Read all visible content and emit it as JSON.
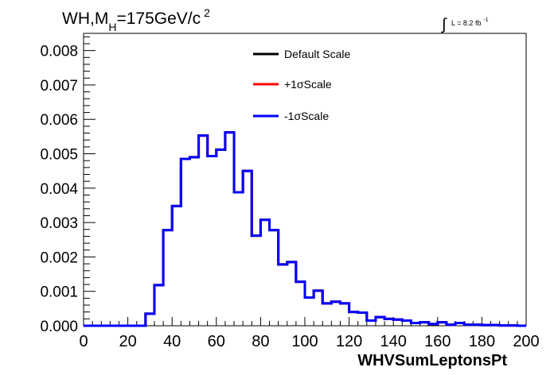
{
  "chart_data": {
    "type": "line",
    "style": "step-histogram",
    "title": {
      "main": "WH,M",
      "subscript": "H",
      "tail": "=175GeV/c",
      "superscript": "2"
    },
    "lumi": {
      "integral_symbol": "∫",
      "text": "L = 8.2 fb",
      "superscript": "-1"
    },
    "xlabel": "WHVSumLeptonsPt",
    "ylabel": "",
    "xlim": [
      0,
      200
    ],
    "ylim": [
      0,
      0.0085
    ],
    "x_ticks": [
      "0",
      "20",
      "40",
      "60",
      "80",
      "100",
      "120",
      "140",
      "160",
      "180",
      "200"
    ],
    "y_ticks": [
      "0.000",
      "0.001",
      "0.002",
      "0.003",
      "0.004",
      "0.005",
      "0.006",
      "0.007",
      "0.008"
    ],
    "grid": false,
    "legend_position": "top-center",
    "bin_edges": [
      0,
      4,
      8,
      12,
      16,
      20,
      24,
      28,
      32,
      36,
      40,
      44,
      48,
      52,
      56,
      60,
      64,
      68,
      72,
      76,
      80,
      84,
      88,
      92,
      96,
      100,
      104,
      108,
      112,
      116,
      120,
      124,
      128,
      132,
      136,
      140,
      144,
      148,
      152,
      156,
      160,
      164,
      168,
      172,
      176,
      180,
      184,
      188,
      192,
      196,
      200
    ],
    "series": [
      {
        "name": "Default Scale",
        "color": "#000000",
        "values": [
          0,
          0,
          0,
          0,
          0,
          0,
          0,
          0.00035,
          0.00118,
          0.00278,
          0.00348,
          0.00485,
          0.0049,
          0.00553,
          0.00493,
          0.00512,
          0.00562,
          0.00388,
          0.0045,
          0.00262,
          0.00308,
          0.00278,
          0.00178,
          0.00185,
          0.00128,
          0.00082,
          0.00102,
          0.00065,
          0.0007,
          0.00065,
          0.0004,
          0.00038,
          0.00015,
          0.00025,
          0.0002,
          0.00018,
          0.00015,
          8e-05,
          0.0001,
          5e-05,
          0.0001,
          3e-05,
          8e-05,
          3e-05,
          3e-05,
          2e-05,
          2e-05,
          1e-05,
          1e-05,
          0
        ]
      },
      {
        "name": "+1σScale",
        "color": "#ff0000",
        "values": [
          0,
          0,
          0,
          0,
          0,
          0,
          0,
          0.00035,
          0.00118,
          0.00278,
          0.00348,
          0.00485,
          0.0049,
          0.00553,
          0.00493,
          0.00512,
          0.00562,
          0.00388,
          0.0045,
          0.00262,
          0.00308,
          0.00278,
          0.00178,
          0.00185,
          0.00128,
          0.00082,
          0.00102,
          0.00065,
          0.0007,
          0.00065,
          0.0004,
          0.00038,
          0.00015,
          0.00025,
          0.0002,
          0.00018,
          0.00015,
          8e-05,
          0.0001,
          5e-05,
          0.0001,
          3e-05,
          8e-05,
          3e-05,
          3e-05,
          2e-05,
          2e-05,
          1e-05,
          1e-05,
          0
        ]
      },
      {
        "name": "-1σScale",
        "color": "#0000ff",
        "values": [
          0,
          0,
          0,
          0,
          0,
          0,
          0,
          0.00035,
          0.00118,
          0.00278,
          0.00348,
          0.00485,
          0.0049,
          0.00553,
          0.00493,
          0.00512,
          0.00562,
          0.00388,
          0.0045,
          0.00262,
          0.00308,
          0.00278,
          0.00178,
          0.00185,
          0.00128,
          0.00082,
          0.00102,
          0.00065,
          0.0007,
          0.00065,
          0.0004,
          0.00038,
          0.00015,
          0.00025,
          0.0002,
          0.00018,
          0.00015,
          8e-05,
          0.0001,
          5e-05,
          0.0001,
          3e-05,
          8e-05,
          3e-05,
          3e-05,
          2e-05,
          2e-05,
          1e-05,
          1e-05,
          0
        ]
      }
    ]
  }
}
